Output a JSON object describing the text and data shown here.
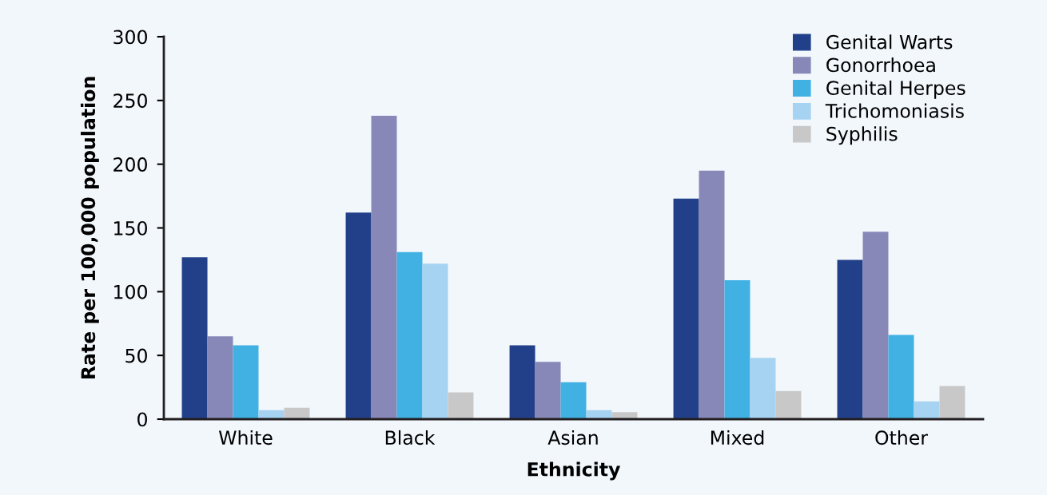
{
  "chart_data": {
    "type": "bar",
    "xlabel": "Ethnicity",
    "ylabel": "Rate per 100,000 population",
    "categories": [
      "White",
      "Black",
      "Asian",
      "Mixed",
      "Other"
    ],
    "series": [
      {
        "name": "Genital Warts",
        "color": "#22408a",
        "values": [
          127,
          162,
          58,
          173,
          125
        ]
      },
      {
        "name": "Gonorrhoea",
        "color": "#8888b8",
        "values": [
          65,
          238,
          45,
          195,
          147
        ]
      },
      {
        "name": "Genital Herpes",
        "color": "#41b1e4",
        "values": [
          58,
          131,
          29,
          109,
          66
        ]
      },
      {
        "name": "Trichomoniasis",
        "color": "#a6d3f1",
        "values": [
          7,
          122,
          7,
          48,
          14
        ]
      },
      {
        "name": "Syphilis",
        "color": "#c8c8c8",
        "values": [
          9,
          21,
          5.5,
          22,
          26
        ]
      }
    ],
    "ylim": [
      0,
      300
    ],
    "yticks": [
      0,
      50,
      100,
      150,
      200,
      250,
      300
    ],
    "grid": false,
    "legend": "top right"
  }
}
